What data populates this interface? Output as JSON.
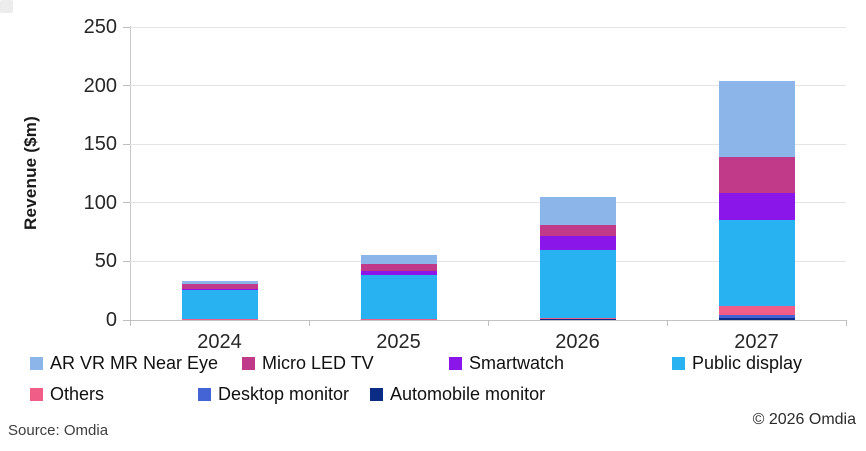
{
  "meta": {
    "source": "Source: Omdia",
    "copyright": "© 2026 Omdia"
  },
  "chart_data": {
    "type": "bar",
    "stacked": true,
    "title": "",
    "xlabel": "",
    "ylabel": "Revenue ($m)",
    "ylim": [
      0,
      250
    ],
    "yticks": [
      0,
      50,
      100,
      150,
      200,
      250
    ],
    "grid": true,
    "categories": [
      "2024",
      "2025",
      "2026",
      "2027"
    ],
    "series": [
      {
        "name": "Automobile monitor",
        "color": "#0b2c85",
        "values": [
          0,
          0,
          0.5,
          2
        ]
      },
      {
        "name": "Desktop monitor",
        "color": "#4464d6",
        "values": [
          0,
          0,
          0.5,
          2
        ]
      },
      {
        "name": "Others",
        "color": "#f05e88",
        "values": [
          0.5,
          0.5,
          1,
          8
        ]
      },
      {
        "name": "Public display",
        "color": "#29b2f1",
        "values": [
          25,
          38,
          58,
          73
        ]
      },
      {
        "name": "Smartwatch",
        "color": "#8b16e9",
        "values": [
          1,
          3,
          12,
          23
        ]
      },
      {
        "name": "Micro LED TV",
        "color": "#c13a8a",
        "values": [
          4,
          6,
          9,
          31
        ]
      },
      {
        "name": "AR VR MR Near Eye",
        "color": "#8cb5e9",
        "values": [
          3,
          8,
          24,
          65
        ]
      }
    ],
    "totals": [
      33.5,
      55.5,
      105,
      204
    ],
    "legend": {
      "position": "bottom",
      "rows": [
        [
          "AR VR MR Near Eye",
          "Micro LED TV",
          "Smartwatch",
          "Public display"
        ],
        [
          "Others",
          "Desktop monitor",
          "Automobile monitor"
        ]
      ]
    }
  }
}
